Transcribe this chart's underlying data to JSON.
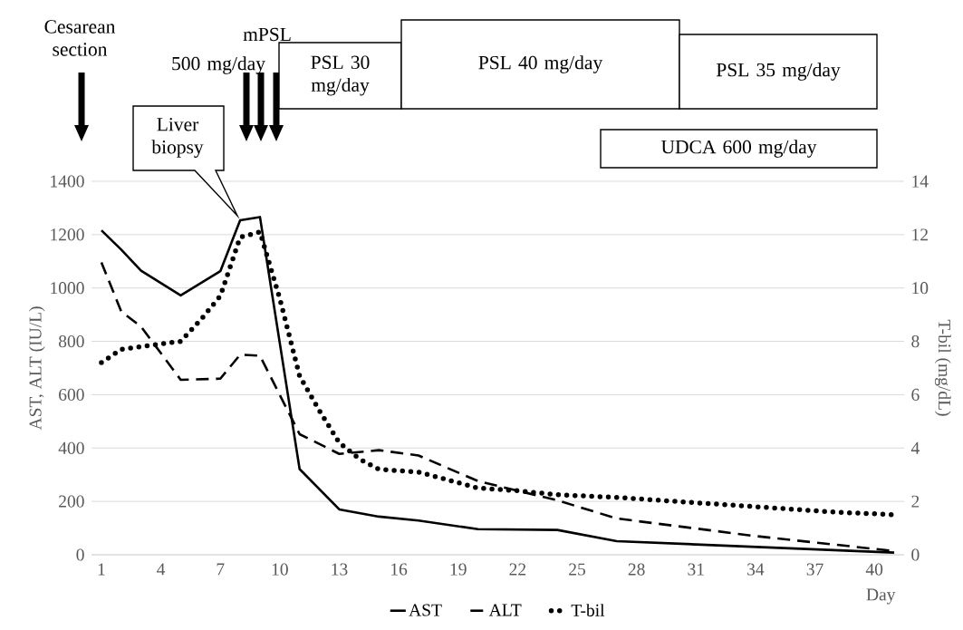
{
  "chart_data": {
    "type": "line",
    "xlabel": "Day",
    "ylabel": "AST, ALT (IU/L)",
    "y2label": "T-bil (mg/dL)",
    "xlim": [
      0.5,
      41.5
    ],
    "xticks": [
      1,
      4,
      7,
      10,
      13,
      16,
      19,
      22,
      25,
      28,
      31,
      34,
      37,
      40
    ],
    "ylim": [
      0,
      1400
    ],
    "yticks": [
      0,
      200,
      400,
      600,
      800,
      1000,
      1200,
      1400
    ],
    "y2lim": [
      0,
      14
    ],
    "y2ticks": [
      0,
      2,
      4,
      6,
      8,
      10,
      12,
      14
    ],
    "grid": "y",
    "legend": "bottom",
    "marker": "none",
    "series": [
      {
        "name": "AST",
        "color": "#000000",
        "line_style": "solid",
        "x": [
          1,
          2,
          3,
          5,
          7,
          8,
          9,
          11,
          13,
          15,
          17,
          20,
          24,
          27,
          41
        ],
        "values": [
          1216,
          1144,
          1065,
          972,
          1063,
          1254,
          1266,
          321,
          170,
          143,
          128,
          96,
          93,
          51,
          8
        ]
      },
      {
        "name": "ALT",
        "color": "#000000",
        "line_style": "dashed",
        "x": [
          1,
          2,
          3,
          5,
          7,
          8,
          9,
          11,
          13,
          15,
          17,
          20,
          24,
          27,
          34,
          41
        ],
        "values": [
          1096,
          912,
          855,
          656,
          660,
          750,
          746,
          452,
          378,
          392,
          372,
          276,
          204,
          136,
          70,
          14
        ]
      },
      {
        "name": "T-bil",
        "color": "#000000",
        "line_style": "dotted",
        "axis": "y2",
        "x": [
          1,
          2,
          3,
          4,
          5,
          6,
          7,
          8,
          9,
          10,
          11,
          12,
          13,
          14,
          15,
          17,
          20,
          22,
          24,
          27,
          30,
          34,
          38,
          41
        ],
        "values": [
          7.2,
          7.7,
          7.8,
          7.9,
          8.0,
          8.8,
          9.7,
          11.9,
          12.1,
          9.6,
          6.7,
          5.4,
          4.2,
          3.6,
          3.2,
          3.1,
          2.5,
          2.4,
          2.25,
          2.15,
          2.0,
          1.8,
          1.6,
          1.5
        ]
      }
    ],
    "annotations": [
      "Cesarean section",
      "mPSL",
      "500 mg/day",
      "Liver biopsy",
      "PSL 30 mg/day",
      "PSL 40 mg/day",
      "PSL 35 mg/day",
      "UDCA 600 mg/day"
    ]
  }
}
